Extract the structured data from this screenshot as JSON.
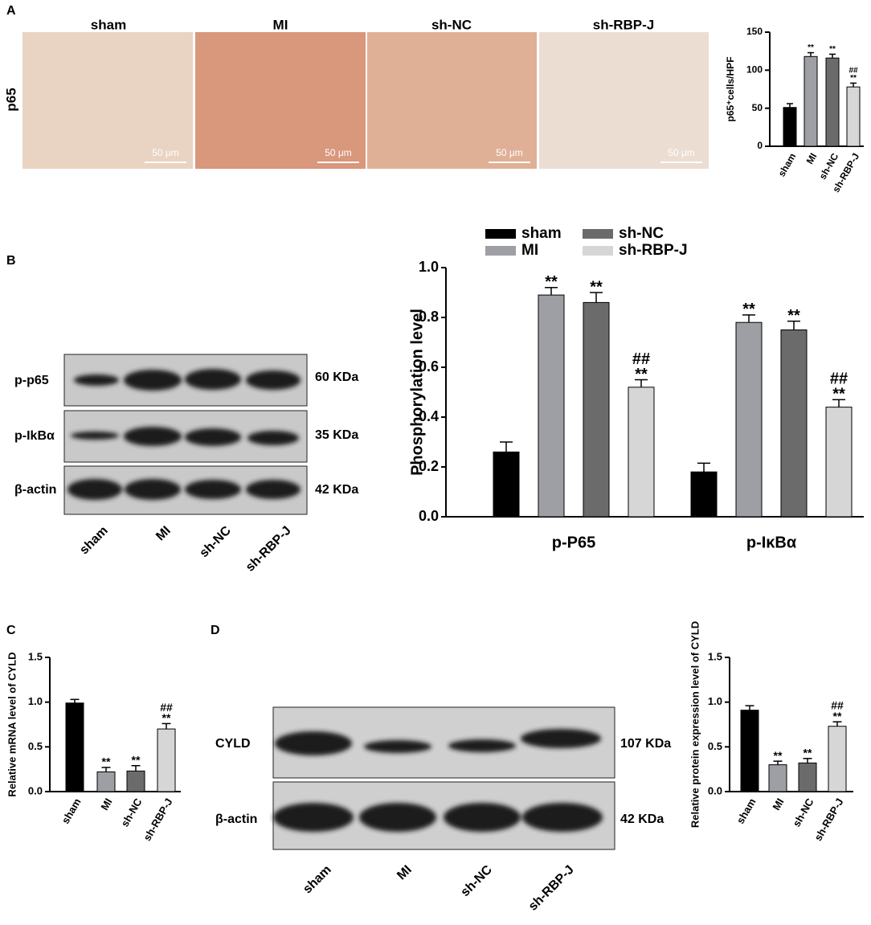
{
  "figure": {
    "panel_labels": [
      "A",
      "B",
      "C",
      "D"
    ],
    "micrograph_titles": [
      "sham",
      "MI",
      "sh-NC",
      "sh-RBP-J"
    ],
    "micrograph_row_label": "p65",
    "scale_bar": "50 μm",
    "blot_b": {
      "rows": [
        "p-p65",
        "p-IkBα",
        "β-actin"
      ],
      "sizes": [
        "60 KDa",
        "35 KDa",
        "42 KDa"
      ],
      "lanes": [
        "sham",
        "MI",
        "sh-NC",
        "sh-RBP-J"
      ]
    },
    "blot_d": {
      "rows": [
        "CYLD",
        "β-actin"
      ],
      "sizes": [
        "107 KDa",
        "42 KDa"
      ],
      "lanes": [
        "sham",
        "MI",
        "sh-NC",
        "sh-RBP-J"
      ]
    }
  },
  "chart_data": [
    {
      "type": "bar",
      "y_label": "p65⁺cells/HPF",
      "categories": [
        "sham",
        "MI",
        "sh-NC",
        "sh-RBP-J"
      ],
      "values": [
        51,
        118,
        116,
        78
      ],
      "errors": [
        5,
        5,
        5,
        5
      ],
      "colors": [
        "#000000",
        "#9d9fa5",
        "#6b6b6b",
        "#d6d6d6"
      ],
      "markers": [
        [],
        [
          "**"
        ],
        [
          "**"
        ],
        [
          "##",
          "**"
        ]
      ],
      "ylim": [
        0,
        150
      ],
      "yticks": [
        0,
        50,
        100,
        150
      ]
    },
    {
      "type": "grouped_bar",
      "y_label": "Phosphorylation level",
      "categories": [
        "p-P65",
        "p-IκBα"
      ],
      "series": [
        {
          "name": "sham",
          "color": "#000000",
          "values": [
            0.26,
            0.18
          ],
          "errors": [
            0.04,
            0.035
          ],
          "markers": [
            [],
            []
          ]
        },
        {
          "name": "MI",
          "color": "#9d9fa5",
          "values": [
            0.89,
            0.78
          ],
          "errors": [
            0.03,
            0.03
          ],
          "markers": [
            [
              "**"
            ],
            [
              "**"
            ]
          ]
        },
        {
          "name": "sh-NC",
          "color": "#6b6b6b",
          "values": [
            0.86,
            0.75
          ],
          "errors": [
            0.04,
            0.035
          ],
          "markers": [
            [
              "**"
            ],
            [
              "**"
            ]
          ]
        },
        {
          "name": "sh-RBP-J",
          "color": "#d6d6d6",
          "values": [
            0.52,
            0.44
          ],
          "errors": [
            0.03,
            0.03
          ],
          "markers": [
            [
              "##",
              "**"
            ],
            [
              "##",
              "**"
            ]
          ]
        }
      ],
      "ylim": [
        0,
        1.0
      ],
      "yticks": [
        {
          "value": 0,
          "label": "0.0"
        },
        0.2,
        0.4,
        0.6,
        0.8,
        {
          "value": 1,
          "label": "1.0"
        }
      ],
      "legend": "top"
    },
    {
      "type": "bar",
      "y_label": "Relative mRNA  level of CYLD",
      "categories": [
        "sham",
        "MI",
        "sh-NC",
        "sh-RBP-J"
      ],
      "values": [
        0.99,
        0.22,
        0.23,
        0.7
      ],
      "errors": [
        0.04,
        0.05,
        0.06,
        0.06
      ],
      "colors": [
        "#000000",
        "#9d9fa5",
        "#6b6b6b",
        "#d6d6d6"
      ],
      "markers": [
        [],
        [
          "**"
        ],
        [
          "**"
        ],
        [
          "##",
          "**"
        ]
      ],
      "ylim": [
        0,
        1.5
      ],
      "yticks": [
        {
          "value": 0,
          "label": "0.0"
        },
        0.5,
        {
          "value": 1,
          "label": "1.0"
        },
        1.5
      ]
    },
    {
      "type": "bar",
      "y_label": "Relative protein expression level of CYLD",
      "categories": [
        "sham",
        "MI",
        "sh-NC",
        "sh-RBP-J"
      ],
      "values": [
        0.91,
        0.3,
        0.32,
        0.73
      ],
      "errors": [
        0.05,
        0.04,
        0.05,
        0.05
      ],
      "colors": [
        "#000000",
        "#9d9fa5",
        "#6b6b6b",
        "#d6d6d6"
      ],
      "markers": [
        [],
        [
          "**"
        ],
        [
          "**"
        ],
        [
          "##",
          "**"
        ]
      ],
      "ylim": [
        0,
        1.5
      ],
      "yticks": [
        {
          "value": 0,
          "label": "0.0"
        },
        0.5,
        {
          "value": 1,
          "label": "1.0"
        },
        1.5
      ]
    }
  ]
}
